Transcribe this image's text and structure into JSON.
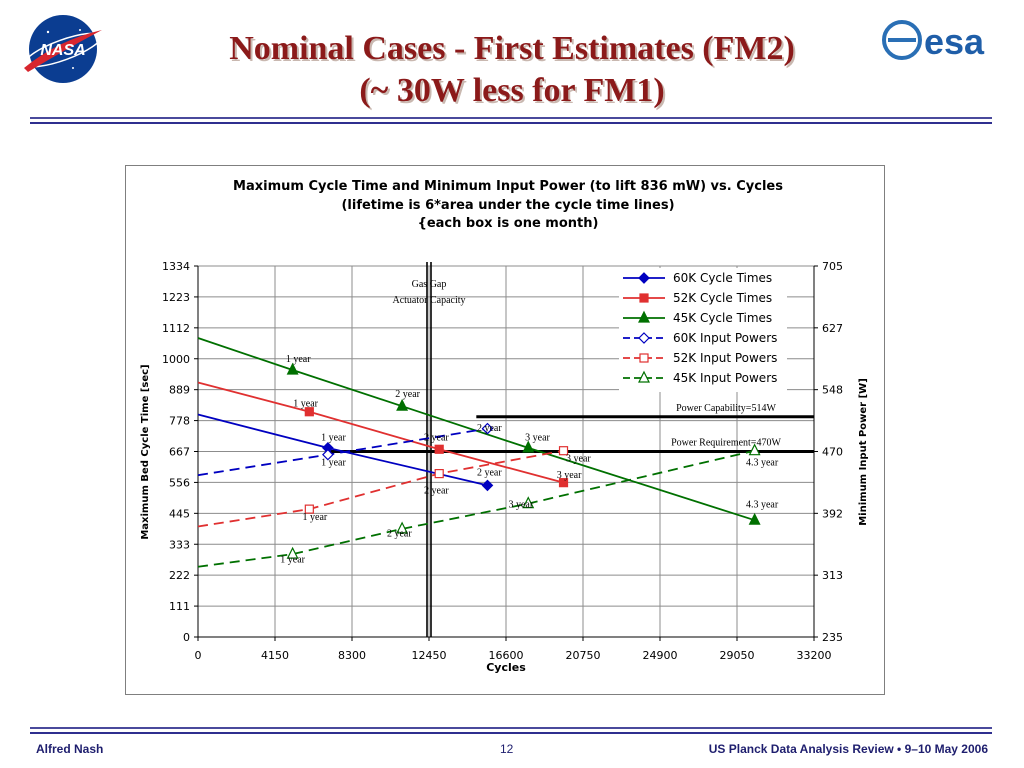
{
  "slide": {
    "title_line1": "Nominal Cases - First Estimates (FM2)",
    "title_line2": "(~ 30W less for FM1)",
    "nasa_logo_text": "NASA",
    "esa_logo_text": "esa"
  },
  "footer": {
    "author": "Alfred Nash",
    "page": "12",
    "event": "US Planck Data Analysis Review  •  9–10 May 2006"
  },
  "colors": {
    "accent_title": "#8b1a1a",
    "rule": "#2f2f8f",
    "series_60K": "#0000c0",
    "series_52K": "#e03030",
    "series_45K": "#007000"
  },
  "chart_data": {
    "type": "line",
    "title": "Maximum Cycle Time and Minimum Input Power (to lift 836 mW) vs. Cycles",
    "subtitle": "(lifetime is 6*area under the cycle time lines)",
    "subtitle2": "{each box is one month)",
    "xlabel": "Cycles",
    "ylabel": "Maximum Bed Cycle Time [sec]",
    "y2label": "Minimum Input Power [W]",
    "xlim": [
      0,
      33200
    ],
    "ylim": [
      0,
      1334
    ],
    "y2lim": [
      235,
      705
    ],
    "x_ticks": [
      "0",
      "4150",
      "8300",
      "12450",
      "16600",
      "20750",
      "24900",
      "29050",
      "33200"
    ],
    "y_ticks": [
      "0",
      "111",
      "222",
      "333",
      "445",
      "556",
      "667",
      "778",
      "889",
      "1000",
      "1112",
      "1223",
      "1334"
    ],
    "y2_ticks": [
      "235",
      "313",
      "392",
      "470",
      "548",
      "627",
      "705"
    ],
    "grid": true,
    "legend_position": "top-right",
    "series": [
      {
        "name": "60K Cycle Times",
        "axis": "left",
        "style": "solid",
        "marker": "diamond-filled",
        "color": "#0000c0",
        "points": [
          [
            0,
            800
          ],
          [
            7000,
            680
          ],
          [
            15600,
            545
          ]
        ],
        "markers_at": [
          7000,
          15600
        ]
      },
      {
        "name": "52K Cycle Times",
        "axis": "left",
        "style": "solid",
        "marker": "square-filled",
        "color": "#e03030",
        "points": [
          [
            0,
            915
          ],
          [
            6000,
            810
          ],
          [
            13000,
            675
          ],
          [
            19700,
            555
          ]
        ],
        "markers_at": [
          6000,
          13000,
          19700
        ]
      },
      {
        "name": "45K Cycle Times",
        "axis": "left",
        "style": "solid",
        "marker": "triangle-filled",
        "color": "#007000",
        "points": [
          [
            0,
            1075
          ],
          [
            5100,
            960
          ],
          [
            11000,
            830
          ],
          [
            17800,
            680
          ],
          [
            30000,
            420
          ]
        ],
        "markers_at": [
          5100,
          11000,
          17800,
          30000
        ]
      },
      {
        "name": "60K Input Powers",
        "axis": "right",
        "style": "dashed",
        "marker": "diamond-open",
        "color": "#0000c0",
        "points": [
          [
            0,
            440
          ],
          [
            7000,
            466
          ],
          [
            15600,
            499
          ]
        ],
        "markers_at": [
          7000,
          15600
        ]
      },
      {
        "name": "52K Input Powers",
        "axis": "right",
        "style": "dashed",
        "marker": "square-open",
        "color": "#e03030",
        "points": [
          [
            0,
            375
          ],
          [
            6000,
            397
          ],
          [
            13000,
            442
          ],
          [
            19700,
            471
          ]
        ],
        "markers_at": [
          6000,
          13000,
          19700
        ]
      },
      {
        "name": "45K Input Powers",
        "axis": "right",
        "style": "dashed",
        "marker": "triangle-open",
        "color": "#007000",
        "points": [
          [
            0,
            324
          ],
          [
            5100,
            340
          ],
          [
            11000,
            372
          ],
          [
            17800,
            404
          ],
          [
            30000,
            471
          ]
        ],
        "markers_at": [
          5100,
          11000,
          17800,
          30000
        ]
      }
    ],
    "reference_lines": [
      {
        "label": "Power Capability=514W",
        "axis": "right",
        "y": 514,
        "x_from": 15000,
        "x_to": 33200
      },
      {
        "label": "Power Requirement=470W",
        "axis": "right",
        "y": 470,
        "x_from": 7000,
        "x_to": 33200
      }
    ],
    "vertical_markers": [
      {
        "label_line1": "Gas  Gap",
        "label_line2": "Actuator  Capacity",
        "x": 12450
      }
    ],
    "annotations": [
      {
        "text": "1 year",
        "x": 5400,
        "y": 1000,
        "axis": "left"
      },
      {
        "text": "1 year",
        "x": 5800,
        "y": 840,
        "axis": "left"
      },
      {
        "text": "1 year",
        "x": 7300,
        "y": 718,
        "axis": "left"
      },
      {
        "text": "1 year",
        "x": 7300,
        "y": 627,
        "axis": "left"
      },
      {
        "text": "1 year",
        "x": 6300,
        "y": 432,
        "axis": "left"
      },
      {
        "text": "1 year",
        "x": 5100,
        "y": 278,
        "axis": "left"
      },
      {
        "text": "2 year",
        "x": 11300,
        "y": 873,
        "axis": "left"
      },
      {
        "text": "2 year",
        "x": 12850,
        "y": 718,
        "axis": "left"
      },
      {
        "text": "2 year",
        "x": 15700,
        "y": 752,
        "axis": "left"
      },
      {
        "text": "2 year",
        "x": 15700,
        "y": 592,
        "axis": "left"
      },
      {
        "text": "2 year",
        "x": 12850,
        "y": 527,
        "axis": "left"
      },
      {
        "text": "2 year",
        "x": 10850,
        "y": 372,
        "axis": "left"
      },
      {
        "text": "3 year",
        "x": 18300,
        "y": 718,
        "axis": "left"
      },
      {
        "text": "3 year",
        "x": 20500,
        "y": 642,
        "axis": "left"
      },
      {
        "text": "3 year",
        "x": 20000,
        "y": 582,
        "axis": "left"
      },
      {
        "text": "3 year",
        "x": 17400,
        "y": 477,
        "axis": "left"
      },
      {
        "text": "4.3 year",
        "x": 30400,
        "y": 627,
        "axis": "left"
      },
      {
        "text": "4.3 year",
        "x": 30400,
        "y": 477,
        "axis": "left"
      }
    ]
  }
}
